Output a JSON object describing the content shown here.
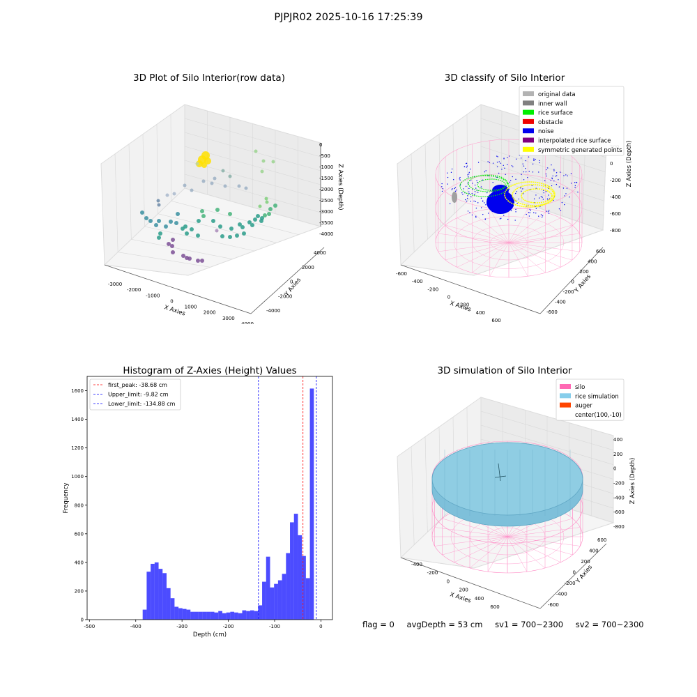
{
  "figure": {
    "suptitle": "PJPJR02 2025-10-16 17:25:39"
  },
  "panel_raw": {
    "title": "3D Plot of Silo Interior(row data)",
    "xlabel": "X Axies",
    "ylabel": "Y Axies",
    "zlabel": "Z Axies (Depth)",
    "xticks": [
      "-3000",
      "-2000",
      "-1000",
      "0",
      "1000",
      "2000",
      "3000",
      "4000"
    ],
    "yticks": [
      "-4000",
      "-2000",
      "0",
      "2000",
      "4000"
    ],
    "zticks": [
      "0",
      "-500",
      "-1000",
      "-1500",
      "-2000",
      "-2500",
      "-3000",
      "-3500",
      "-4000"
    ]
  },
  "panel_classify": {
    "title": "3D classify of Silo Interior",
    "xlabel": "X Axies",
    "ylabel": "Y Axies",
    "zlabel": "Z Axies (Depth)",
    "xticks": [
      "-600",
      "-400",
      "-200",
      "0",
      "200",
      "400",
      "600"
    ],
    "yticks": [
      "-600",
      "-400",
      "-200",
      "0",
      "200",
      "400",
      "600"
    ],
    "zticks": [
      "200",
      "0",
      "-200",
      "-400",
      "-600",
      "-800"
    ],
    "legend": [
      {
        "label": "original data",
        "color": "#b3b3b3"
      },
      {
        "label": "inner wall",
        "color": "#808080"
      },
      {
        "label": "rice surface",
        "color": "#00ee00"
      },
      {
        "label": "obstacle",
        "color": "#ee0000"
      },
      {
        "label": "noise",
        "color": "#0000ee"
      },
      {
        "label": "interpolated rice surface",
        "color": "#800080"
      },
      {
        "label": "symmetric generated points",
        "color": "#ffff00"
      }
    ]
  },
  "panel_sim": {
    "title": "3D simulation of Silo Interior",
    "xlabel": "X Axies",
    "ylabel": "Y Axies",
    "zlabel": "Z Axies (Depth)",
    "xticks": [
      "-400",
      "-200",
      "0",
      "200",
      "400",
      "600"
    ],
    "yticks": [
      "-600",
      "-400",
      "-200",
      "0",
      "200",
      "400",
      "600"
    ],
    "zticks": [
      "400",
      "200",
      "0",
      "-200",
      "-400",
      "-600",
      "-800"
    ],
    "legend": [
      {
        "label": "silo",
        "color": "#ff69b4"
      },
      {
        "label": "rice simulation",
        "color": "#87ceeb"
      },
      {
        "label": "auger",
        "color": "#ff4500"
      },
      {
        "label": "center(100,-10)",
        "color": ""
      }
    ]
  },
  "chart_data": [
    {
      "type": "bar",
      "title": "Histogram of Z-Axies (Height) Values",
      "xlabel": "Depth (cm)",
      "ylabel": "Frequency",
      "xlim": [
        -505,
        25
      ],
      "ylim": [
        0,
        1700
      ],
      "xticks": [
        -500,
        -400,
        -300,
        -200,
        -100,
        0
      ],
      "yticks": [
        0,
        200,
        400,
        600,
        800,
        1000,
        1200,
        1400,
        1600
      ],
      "bin_width": 8.6,
      "bins_start": [
        -385,
        -376.4,
        -367.8,
        -359.2,
        -350.6,
        -342,
        -333.4,
        -324.8,
        -316.2,
        -307.6,
        -299,
        -290.4,
        -281.8,
        -273.2,
        -264.6,
        -256,
        -247.4,
        -238.8,
        -230.2,
        -221.6,
        -213,
        -204.4,
        -195.8,
        -187.2,
        -178.6,
        -170,
        -161.4,
        -152.8,
        -144.2,
        -135.6,
        -127,
        -118.4,
        -109.8,
        -101.2,
        -92.6,
        -84,
        -75.4,
        -66.8,
        -58.2,
        -49.6,
        -41,
        -32.4,
        -23.8,
        -15.2,
        -6.6
      ],
      "values": [
        70,
        335,
        390,
        400,
        355,
        325,
        220,
        150,
        90,
        80,
        75,
        70,
        55,
        55,
        55,
        55,
        55,
        55,
        50,
        60,
        45,
        50,
        55,
        50,
        45,
        65,
        60,
        65,
        60,
        100,
        265,
        440,
        225,
        250,
        275,
        320,
        465,
        680,
        740,
        590,
        445,
        290,
        1615,
        0,
        0
      ],
      "bar_color": "#0000ff",
      "vlines": [
        {
          "label": "first_peak: -38.68 cm",
          "x": -38.68,
          "color": "#ff0000"
        },
        {
          "label": "Upper_limit: -9.82 cm",
          "x": -9.82,
          "color": "#0000ff"
        },
        {
          "label": "Lower_limit: -134.88 cm",
          "x": -134.88,
          "color": "#0000ff"
        }
      ],
      "legend_position": "upper-left"
    }
  ],
  "status": {
    "flag": "flag = 0",
    "avg_depth": "avgDepth = 53 cm",
    "sv1": "sv1 = 700~2300",
    "sv2": "sv2 = 700~2300"
  }
}
